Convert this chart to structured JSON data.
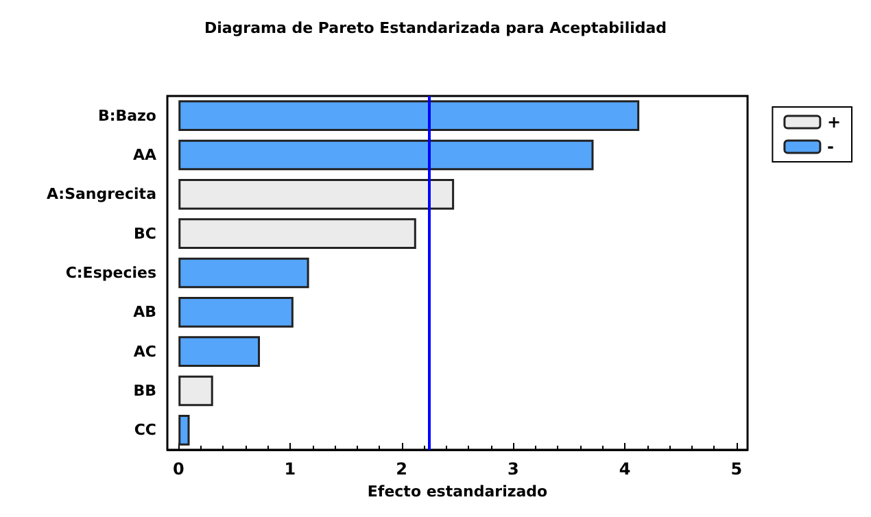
{
  "chart_data": {
    "type": "bar",
    "orientation": "horizontal",
    "title": "Diagrama de Pareto Estandarizada para Aceptabilidad",
    "xlabel": "Efecto estandarizado",
    "categories": [
      "B:Bazo",
      "AA",
      "A:Sangrecita",
      "BC",
      "C:Especies",
      "AB",
      "AC",
      "BB",
      "CC"
    ],
    "series": [
      {
        "name": "+",
        "color": "#ebebeb",
        "values": [
          null,
          null,
          2.47,
          2.13,
          null,
          null,
          null,
          0.31,
          null
        ]
      },
      {
        "name": "-",
        "color": "#55a5fa",
        "values": [
          4.13,
          3.72,
          null,
          null,
          1.17,
          1.03,
          0.73,
          null,
          0.1
        ]
      }
    ],
    "xlim": [
      -0.1,
      5.1
    ],
    "xticks": [
      0,
      1,
      2,
      3,
      4,
      5
    ],
    "ref_lines": [
      {
        "axis": "x",
        "value": 2.25,
        "color": "#0000ff"
      }
    ],
    "legend": "top right",
    "grid": false
  }
}
